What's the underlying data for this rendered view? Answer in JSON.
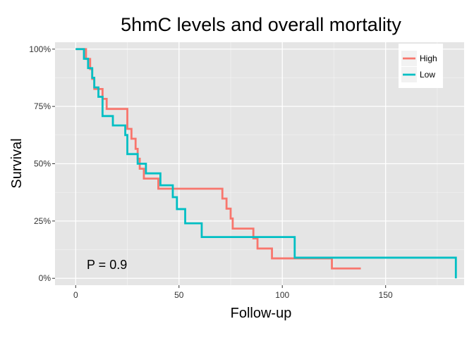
{
  "chart_data": {
    "type": "line",
    "step": true,
    "title": "5hmC levels and overall mortality",
    "xlabel": "Follow-up",
    "ylabel": "Survival",
    "xlim": [
      -10,
      188
    ],
    "ylim": [
      -0.03,
      1.03
    ],
    "x_ticks": [
      0,
      50,
      100,
      150
    ],
    "x_tick_labels": [
      "0",
      "50",
      "100",
      "150"
    ],
    "y_ticks": [
      0,
      0.25,
      0.5,
      0.75,
      1.0
    ],
    "y_tick_labels": [
      "0%",
      "25%",
      "50%",
      "75%",
      "100%"
    ],
    "grid": true,
    "legend_position": "top-right",
    "annotation": "P = 0.9",
    "series": [
      {
        "name": "High",
        "color": "#F8766D",
        "x": [
          0,
          5,
          7,
          8,
          9,
          11,
          13,
          15,
          25,
          27,
          29,
          30,
          31,
          33,
          40,
          71,
          73,
          75,
          76,
          86,
          88,
          90,
          95,
          106,
          124,
          138
        ],
        "y": [
          1.0,
          0.957,
          0.913,
          0.87,
          0.826,
          0.826,
          0.783,
          0.739,
          0.652,
          0.609,
          0.565,
          0.522,
          0.478,
          0.435,
          0.391,
          0.348,
          0.304,
          0.261,
          0.217,
          0.174,
          0.13,
          0.13,
          0.087,
          0.087,
          0.043,
          0.043
        ]
      },
      {
        "name": "Low",
        "color": "#00BFC4",
        "x": [
          0,
          4,
          6,
          8,
          9,
          11,
          13,
          18,
          24,
          25,
          28,
          30,
          31,
          34,
          41,
          47,
          49,
          53,
          61,
          106,
          184,
          184
        ],
        "y": [
          1.0,
          0.958,
          0.917,
          0.875,
          0.833,
          0.792,
          0.708,
          0.667,
          0.625,
          0.542,
          0.542,
          0.5,
          0.5,
          0.458,
          0.406,
          0.354,
          0.302,
          0.24,
          0.18,
          0.09,
          0.09,
          0.0
        ]
      }
    ]
  },
  "colors": {
    "panel_background": "#E5E5E5",
    "grid": "#FFFFFF",
    "legend_background": "#FFFFFF",
    "legend_key_background": "#F2F2F2"
  }
}
